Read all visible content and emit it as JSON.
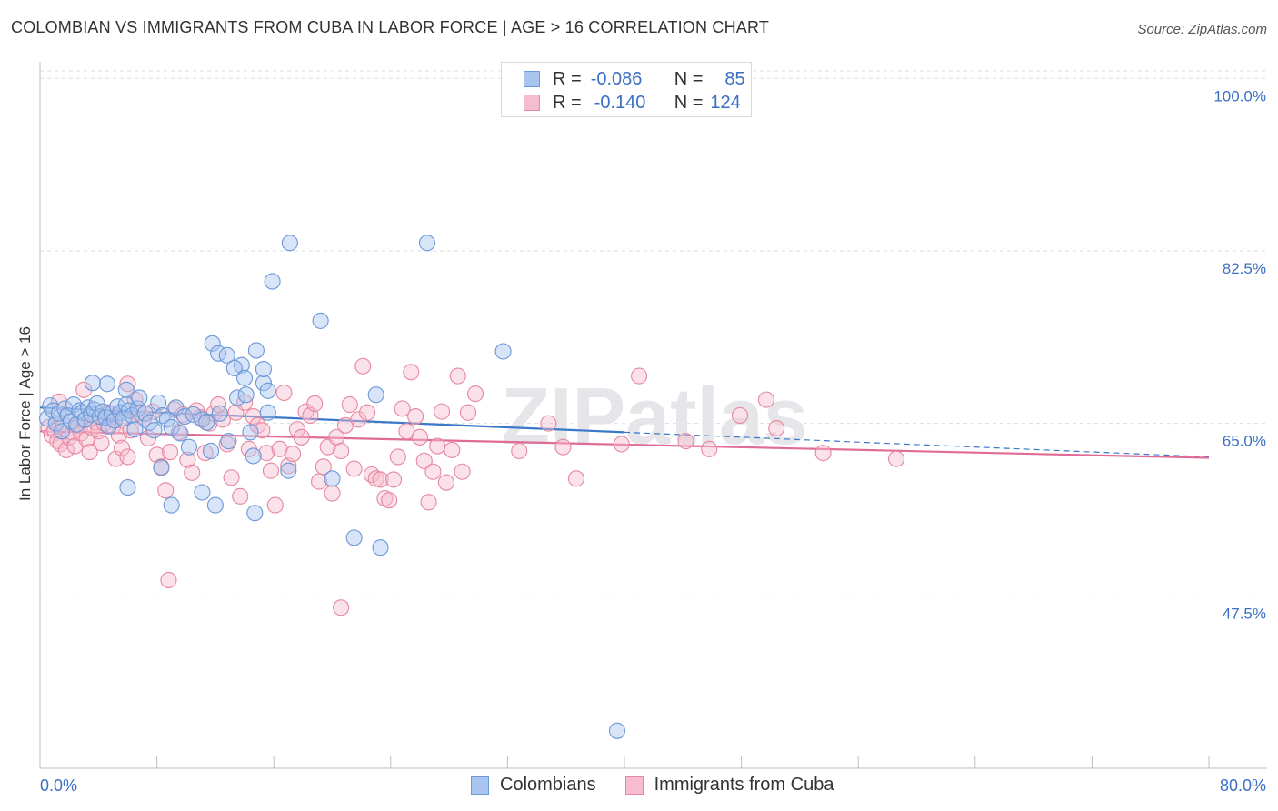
{
  "title": "COLOMBIAN VS IMMIGRANTS FROM CUBA IN LABOR FORCE | AGE > 16 CORRELATION CHART",
  "source": "Source: ZipAtlas.com",
  "watermark": "ZIPatlas",
  "legend": {
    "rows": [
      {
        "r_label": "R =",
        "r_value": "-0.086",
        "n_label": "N =",
        "n_value": "85"
      },
      {
        "r_label": "R =",
        "r_value": "-0.140",
        "n_label": "N =",
        "n_value": "124"
      }
    ]
  },
  "bottom_legend": {
    "series1": "Colombians",
    "series2": "Immigrants from Cuba"
  },
  "colors": {
    "blue_fill": "#a9c4ee",
    "blue_stroke": "#6b98d8",
    "blue_line": "#3a78c9",
    "pink_fill": "#f6bcd0",
    "pink_stroke": "#e6889f",
    "pink_line": "#e06b96",
    "tick_text": "#3b6fc4",
    "grid": "#dddddd"
  },
  "chart_data": {
    "type": "scatter",
    "title": "COLOMBIAN VS IMMIGRANTS FROM CUBA IN LABOR FORCE | AGE > 16 CORRELATION CHART",
    "xlabel": "",
    "ylabel": "In Labor Force | Age > 16",
    "xlim": [
      0,
      80
    ],
    "ylim": [
      30,
      101.5
    ],
    "x_tick_labels": [
      "0.0%",
      "80.0%"
    ],
    "y_ticks": [
      {
        "value": 47.5,
        "label": "47.5%"
      },
      {
        "value": 65.0,
        "label": "65.0%"
      },
      {
        "value": 82.5,
        "label": "82.5%"
      },
      {
        "value": 100.0,
        "label": "100.0%"
      }
    ],
    "grid": true,
    "legend_position": "top-center",
    "series": [
      {
        "name": "Colombians",
        "r": -0.086,
        "n": 85,
        "trend": {
          "x_start": 0,
          "y_start": 66.6,
          "x_end": 80,
          "y_end": 61.6,
          "solid_until_x": 40
        },
        "points": [
          [
            0.5,
            65.5
          ],
          [
            0.7,
            66.8
          ],
          [
            0.9,
            66.3
          ],
          [
            1.1,
            65.0
          ],
          [
            1.3,
            66.0
          ],
          [
            1.5,
            64.2
          ],
          [
            1.7,
            66.5
          ],
          [
            1.9,
            65.8
          ],
          [
            2.1,
            65.2
          ],
          [
            2.3,
            66.9
          ],
          [
            2.5,
            64.9
          ],
          [
            2.7,
            66.3
          ],
          [
            2.9,
            66.1
          ],
          [
            3.1,
            65.4
          ],
          [
            3.3,
            66.6
          ],
          [
            3.5,
            65.9
          ],
          [
            3.7,
            66.4
          ],
          [
            3.9,
            67.0
          ],
          [
            4.1,
            65.7
          ],
          [
            4.3,
            66.2
          ],
          [
            4.5,
            65.6
          ],
          [
            4.7,
            64.7
          ],
          [
            4.9,
            66.0
          ],
          [
            5.1,
            65.3
          ],
          [
            5.3,
            66.7
          ],
          [
            5.5,
            66.1
          ],
          [
            5.7,
            65.5
          ],
          [
            5.9,
            66.9
          ],
          [
            6.1,
            66.3
          ],
          [
            6.3,
            65.8
          ],
          [
            6.5,
            64.4
          ],
          [
            6.7,
            66.5
          ],
          [
            4.6,
            69.0
          ],
          [
            5.9,
            68.4
          ],
          [
            6.8,
            67.6
          ],
          [
            7.2,
            66.0
          ],
          [
            7.5,
            65.1
          ],
          [
            7.8,
            64.3
          ],
          [
            8.1,
            67.1
          ],
          [
            8.4,
            65.8
          ],
          [
            8.7,
            65.4
          ],
          [
            9.0,
            64.6
          ],
          [
            9.3,
            66.6
          ],
          [
            9.6,
            64.0
          ],
          [
            9.9,
            65.7
          ],
          [
            10.2,
            62.6
          ],
          [
            10.5,
            65.9
          ],
          [
            11.1,
            65.4
          ],
          [
            11.4,
            65.1
          ],
          [
            11.7,
            62.2
          ],
          [
            12.3,
            66.0
          ],
          [
            12.9,
            63.2
          ],
          [
            13.5,
            67.6
          ],
          [
            14.1,
            67.9
          ],
          [
            14.4,
            64.1
          ],
          [
            15.3,
            69.1
          ],
          [
            15.6,
            66.1
          ],
          [
            8.3,
            60.5
          ],
          [
            9.0,
            56.7
          ],
          [
            11.1,
            58.0
          ],
          [
            12.0,
            56.7
          ],
          [
            6.0,
            58.5
          ],
          [
            11.8,
            73.1
          ],
          [
            12.2,
            72.1
          ],
          [
            12.8,
            71.9
          ],
          [
            13.8,
            70.9
          ],
          [
            13.3,
            70.6
          ],
          [
            14.0,
            69.6
          ],
          [
            14.8,
            72.4
          ],
          [
            15.3,
            70.5
          ],
          [
            15.6,
            68.3
          ],
          [
            14.6,
            61.7
          ],
          [
            14.7,
            55.9
          ],
          [
            17.0,
            60.2
          ],
          [
            20.0,
            59.4
          ],
          [
            23.3,
            52.4
          ],
          [
            19.2,
            75.4
          ],
          [
            15.9,
            79.4
          ],
          [
            23.0,
            67.9
          ],
          [
            21.5,
            53.4
          ],
          [
            17.1,
            83.3
          ],
          [
            26.5,
            83.3
          ],
          [
            31.7,
            72.3
          ],
          [
            39.5,
            33.8
          ],
          [
            3.6,
            69.1
          ]
        ]
      },
      {
        "name": "Immigrants from Cuba",
        "r": -0.14,
        "n": 124,
        "trend": {
          "x_start": 0,
          "y_start": 64.2,
          "x_end": 80,
          "y_end": 61.5
        },
        "points": [
          [
            0.6,
            64.6
          ],
          [
            0.8,
            63.8
          ],
          [
            1.0,
            64.3
          ],
          [
            1.2,
            63.2
          ],
          [
            1.4,
            62.9
          ],
          [
            1.6,
            64.9
          ],
          [
            1.8,
            62.3
          ],
          [
            2.0,
            63.6
          ],
          [
            2.2,
            64.1
          ],
          [
            2.4,
            62.7
          ],
          [
            2.6,
            64.8
          ],
          [
            2.8,
            64.0
          ],
          [
            3.0,
            65.3
          ],
          [
            3.2,
            63.4
          ],
          [
            3.4,
            62.1
          ],
          [
            3.6,
            64.5
          ],
          [
            3.8,
            65.1
          ],
          [
            4.0,
            64.2
          ],
          [
            4.2,
            63.0
          ],
          [
            4.4,
            65.0
          ],
          [
            4.6,
            66.1
          ],
          [
            4.8,
            65.6
          ],
          [
            5.0,
            64.7
          ],
          [
            5.2,
            61.4
          ],
          [
            5.4,
            63.8
          ],
          [
            5.6,
            62.5
          ],
          [
            5.8,
            65.5
          ],
          [
            6.0,
            61.6
          ],
          [
            6.2,
            64.3
          ],
          [
            6.5,
            67.4
          ],
          [
            6.8,
            66.0
          ],
          [
            7.1,
            65.5
          ],
          [
            7.4,
            63.5
          ],
          [
            7.7,
            66.2
          ],
          [
            8.0,
            61.8
          ],
          [
            8.3,
            60.6
          ],
          [
            8.6,
            58.2
          ],
          [
            8.9,
            62.1
          ],
          [
            9.2,
            66.4
          ],
          [
            9.5,
            64.1
          ],
          [
            9.8,
            65.9
          ],
          [
            10.1,
            61.3
          ],
          [
            10.4,
            60.0
          ],
          [
            10.7,
            66.3
          ],
          [
            11.0,
            65.6
          ],
          [
            11.3,
            62.0
          ],
          [
            11.6,
            65.0
          ],
          [
            11.9,
            66.0
          ],
          [
            12.2,
            66.9
          ],
          [
            12.5,
            65.4
          ],
          [
            12.8,
            62.9
          ],
          [
            13.1,
            59.5
          ],
          [
            13.4,
            66.1
          ],
          [
            13.7,
            57.6
          ],
          [
            14.0,
            67.1
          ],
          [
            14.3,
            62.4
          ],
          [
            14.6,
            65.7
          ],
          [
            14.9,
            64.8
          ],
          [
            15.2,
            64.3
          ],
          [
            15.5,
            62.0
          ],
          [
            15.8,
            60.2
          ],
          [
            16.1,
            56.7
          ],
          [
            16.4,
            62.4
          ],
          [
            16.7,
            68.1
          ],
          [
            17.0,
            60.7
          ],
          [
            17.3,
            61.9
          ],
          [
            17.6,
            64.4
          ],
          [
            17.9,
            63.6
          ],
          [
            18.2,
            66.2
          ],
          [
            18.5,
            65.8
          ],
          [
            18.8,
            67.0
          ],
          [
            19.1,
            59.1
          ],
          [
            19.4,
            60.6
          ],
          [
            19.7,
            62.6
          ],
          [
            20.0,
            57.9
          ],
          [
            20.3,
            63.6
          ],
          [
            20.6,
            62.2
          ],
          [
            20.9,
            64.8
          ],
          [
            21.2,
            66.9
          ],
          [
            21.5,
            60.4
          ],
          [
            21.8,
            65.4
          ],
          [
            22.1,
            70.8
          ],
          [
            22.4,
            66.1
          ],
          [
            22.7,
            59.8
          ],
          [
            23.0,
            59.4
          ],
          [
            23.3,
            59.3
          ],
          [
            23.6,
            57.4
          ],
          [
            23.9,
            57.2
          ],
          [
            24.2,
            59.3
          ],
          [
            24.5,
            61.6
          ],
          [
            24.8,
            66.5
          ],
          [
            25.1,
            64.2
          ],
          [
            25.4,
            70.2
          ],
          [
            25.7,
            65.7
          ],
          [
            26.0,
            63.6
          ],
          [
            26.3,
            61.2
          ],
          [
            26.6,
            57.0
          ],
          [
            26.9,
            60.1
          ],
          [
            27.2,
            62.7
          ],
          [
            27.5,
            66.2
          ],
          [
            27.8,
            59.0
          ],
          [
            28.2,
            62.3
          ],
          [
            28.6,
            69.8
          ],
          [
            28.9,
            60.1
          ],
          [
            29.3,
            66.1
          ],
          [
            29.8,
            68.0
          ],
          [
            32.8,
            62.2
          ],
          [
            34.8,
            65.0
          ],
          [
            35.8,
            62.6
          ],
          [
            36.7,
            59.4
          ],
          [
            39.8,
            62.9
          ],
          [
            41.0,
            69.8
          ],
          [
            44.2,
            63.2
          ],
          [
            45.8,
            62.4
          ],
          [
            47.9,
            65.8
          ],
          [
            49.7,
            67.4
          ],
          [
            50.4,
            64.5
          ],
          [
            53.6,
            62.0
          ],
          [
            58.6,
            61.4
          ],
          [
            1.3,
            67.2
          ],
          [
            3.0,
            68.4
          ],
          [
            6.0,
            69.0
          ],
          [
            8.8,
            49.1
          ],
          [
            20.6,
            46.3
          ]
        ]
      }
    ]
  }
}
